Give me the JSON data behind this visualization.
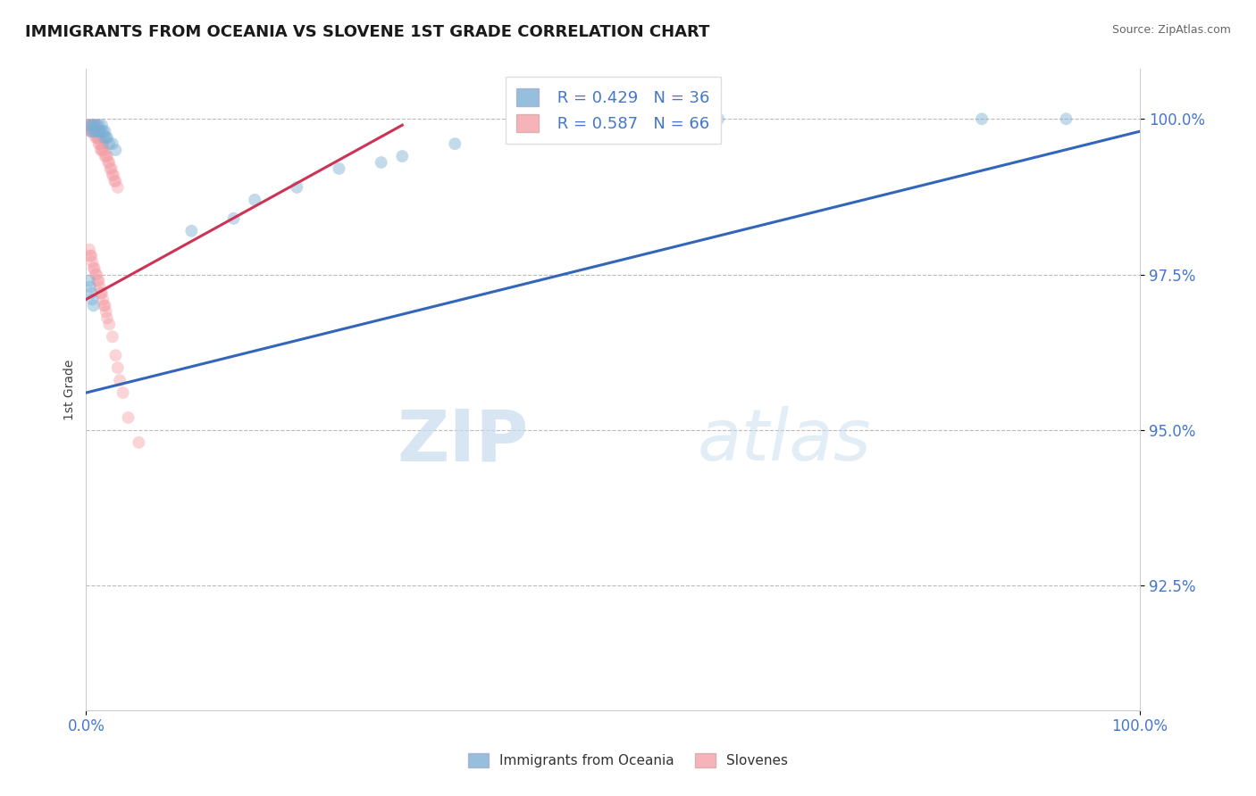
{
  "title": "IMMIGRANTS FROM OCEANIA VS SLOVENE 1ST GRADE CORRELATION CHART",
  "source_text": "Source: ZipAtlas.com",
  "ylabel": "1st Grade",
  "xlim": [
    0.0,
    1.0
  ],
  "ylim": [
    0.905,
    1.008
  ],
  "yticks": [
    0.925,
    0.95,
    0.975,
    1.0
  ],
  "ytick_labels": [
    "92.5%",
    "95.0%",
    "97.5%",
    "100.0%"
  ],
  "xtick_labels": [
    "0.0%",
    "100.0%"
  ],
  "xtick_positions": [
    0.0,
    1.0
  ],
  "legend_r_blue": "R = 0.429",
  "legend_n_blue": "N = 36",
  "legend_r_pink": "R = 0.587",
  "legend_n_pink": "N = 66",
  "legend_label_blue": "Immigrants from Oceania",
  "legend_label_pink": "Slovenes",
  "blue_color": "#7BAFD4",
  "pink_color": "#F4A0A8",
  "watermark_zip": "ZIP",
  "watermark_atlas": "atlas",
  "blue_scatter_x": [
    0.003,
    0.005,
    0.006,
    0.007,
    0.008,
    0.009,
    0.01,
    0.011,
    0.012,
    0.013,
    0.014,
    0.015,
    0.016,
    0.017,
    0.018,
    0.019,
    0.02,
    0.022,
    0.025,
    0.028,
    0.003,
    0.004,
    0.005,
    0.006,
    0.007,
    0.1,
    0.14,
    0.16,
    0.2,
    0.24,
    0.28,
    0.3,
    0.35,
    0.6,
    0.85,
    0.93
  ],
  "blue_scatter_y": [
    0.999,
    0.998,
    0.999,
    0.999,
    0.998,
    0.998,
    0.999,
    0.998,
    0.999,
    0.998,
    0.998,
    0.999,
    0.998,
    0.997,
    0.998,
    0.997,
    0.997,
    0.996,
    0.996,
    0.995,
    0.974,
    0.973,
    0.972,
    0.971,
    0.97,
    0.982,
    0.984,
    0.987,
    0.989,
    0.992,
    0.993,
    0.994,
    0.996,
    1.0,
    1.0,
    1.0
  ],
  "pink_scatter_x": [
    0.002,
    0.003,
    0.004,
    0.005,
    0.005,
    0.006,
    0.006,
    0.007,
    0.007,
    0.008,
    0.008,
    0.009,
    0.009,
    0.01,
    0.01,
    0.011,
    0.011,
    0.012,
    0.012,
    0.013,
    0.013,
    0.014,
    0.014,
    0.015,
    0.015,
    0.016,
    0.016,
    0.017,
    0.018,
    0.019,
    0.02,
    0.021,
    0.022,
    0.023,
    0.024,
    0.025,
    0.026,
    0.027,
    0.028,
    0.03,
    0.003,
    0.004,
    0.005,
    0.006,
    0.007,
    0.008,
    0.009,
    0.01,
    0.011,
    0.012,
    0.013,
    0.014,
    0.015,
    0.016,
    0.017,
    0.018,
    0.019,
    0.02,
    0.022,
    0.025,
    0.028,
    0.03,
    0.032,
    0.035,
    0.04,
    0.05
  ],
  "pink_scatter_y": [
    0.999,
    0.999,
    0.998,
    0.999,
    0.998,
    0.999,
    0.998,
    0.999,
    0.998,
    0.999,
    0.998,
    0.999,
    0.997,
    0.998,
    0.997,
    0.998,
    0.997,
    0.997,
    0.996,
    0.997,
    0.996,
    0.997,
    0.995,
    0.996,
    0.995,
    0.996,
    0.995,
    0.995,
    0.994,
    0.994,
    0.994,
    0.993,
    0.993,
    0.992,
    0.992,
    0.991,
    0.991,
    0.99,
    0.99,
    0.989,
    0.979,
    0.978,
    0.978,
    0.977,
    0.976,
    0.976,
    0.975,
    0.975,
    0.974,
    0.974,
    0.973,
    0.972,
    0.972,
    0.971,
    0.97,
    0.97,
    0.969,
    0.968,
    0.967,
    0.965,
    0.962,
    0.96,
    0.958,
    0.956,
    0.952,
    0.948
  ],
  "blue_trendline_x": [
    0.0,
    1.0
  ],
  "blue_trendline_y": [
    0.956,
    0.998
  ],
  "pink_trendline_x": [
    0.0,
    0.3
  ],
  "pink_trendline_y": [
    0.971,
    0.999
  ],
  "marker_size": 100,
  "alpha": 0.45,
  "grid_color": "#BBBBBB",
  "title_fontsize": 13,
  "tick_label_color": "#4477CC"
}
